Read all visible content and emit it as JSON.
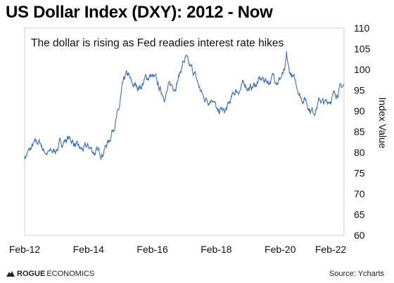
{
  "header": {
    "title": "US Dollar Index (DXY): 2012 - Now"
  },
  "footer": {
    "brand_bold": "ROGUE",
    "brand_rest": "ECONOMICS",
    "logo_icon": "rogue-economics-logo-icon",
    "source": "Source: Ycharts"
  },
  "chart_data": {
    "type": "line",
    "title": "US Dollar Index (DXY): 2012 - Now",
    "annotation": "The dollar is rising as Fed readies interest rate hikes",
    "xlabel": "",
    "ylabel": "Index Value",
    "ylim": [
      60,
      110
    ],
    "yticks": [
      60,
      65,
      70,
      75,
      80,
      85,
      90,
      95,
      100,
      105,
      110
    ],
    "xlim": [
      2012.0,
      2022.0
    ],
    "xticks": [
      {
        "value": 2012.0,
        "label": "Feb-12"
      },
      {
        "value": 2014.0,
        "label": "Feb-14"
      },
      {
        "value": 2016.0,
        "label": "Feb-16"
      },
      {
        "value": 2018.0,
        "label": "Feb-18"
      },
      {
        "value": 2020.0,
        "label": "Feb-20"
      },
      {
        "value": 2022.0,
        "label": "Feb-22"
      }
    ],
    "grid": false,
    "legend": "none",
    "line_color": "#3f6fb5",
    "series": [
      {
        "x": [
          2012.0,
          2012.1,
          2012.25,
          2012.4,
          2012.5,
          2012.6,
          2012.75,
          2012.9,
          2013.05,
          2013.2,
          2013.35,
          2013.5,
          2013.65,
          2013.8,
          2014.0,
          2014.15,
          2014.3,
          2014.45,
          2014.55,
          2014.65,
          2014.75,
          2014.85,
          2014.95,
          2015.05,
          2015.15,
          2015.25,
          2015.35,
          2015.5,
          2015.65,
          2015.8,
          2015.95,
          2016.1,
          2016.25,
          2016.4,
          2016.55,
          2016.7,
          2016.85,
          2016.95,
          2017.05,
          2017.15,
          2017.3,
          2017.45,
          2017.6,
          2017.75,
          2017.9,
          2018.05,
          2018.15,
          2018.25,
          2018.35,
          2018.45,
          2018.6,
          2018.75,
          2018.9,
          2019.05,
          2019.2,
          2019.35,
          2019.5,
          2019.65,
          2019.8,
          2019.95,
          2020.05,
          2020.15,
          2020.2,
          2020.28,
          2020.35,
          2020.45,
          2020.55,
          2020.65,
          2020.8,
          2020.95,
          2021.05,
          2021.15,
          2021.25,
          2021.4,
          2021.55,
          2021.7,
          2021.85,
          2022.0
        ],
        "y": [
          78.9,
          79.8,
          81.3,
          82.4,
          82.2,
          80.5,
          79.8,
          80.1,
          81.4,
          82.6,
          83.4,
          82.8,
          81.0,
          80.4,
          81.3,
          80.3,
          79.8,
          80.2,
          81.7,
          83.0,
          85.6,
          87.8,
          89.9,
          94.8,
          98.0,
          98.5,
          96.2,
          95.9,
          96.1,
          97.8,
          98.6,
          97.3,
          94.8,
          93.9,
          96.0,
          96.2,
          98.8,
          101.5,
          102.6,
          100.4,
          99.3,
          96.0,
          93.2,
          92.8,
          93.6,
          89.0,
          90.3,
          89.5,
          90.6,
          92.4,
          94.8,
          95.3,
          96.6,
          95.3,
          96.2,
          97.3,
          97.6,
          97.2,
          98.3,
          97.5,
          98.4,
          99.1,
          102.8,
          99.2,
          98.7,
          97.1,
          95.8,
          93.4,
          92.9,
          90.4,
          90.1,
          91.3,
          92.8,
          91.5,
          92.9,
          93.9,
          95.3,
          96.0
        ]
      }
    ]
  }
}
